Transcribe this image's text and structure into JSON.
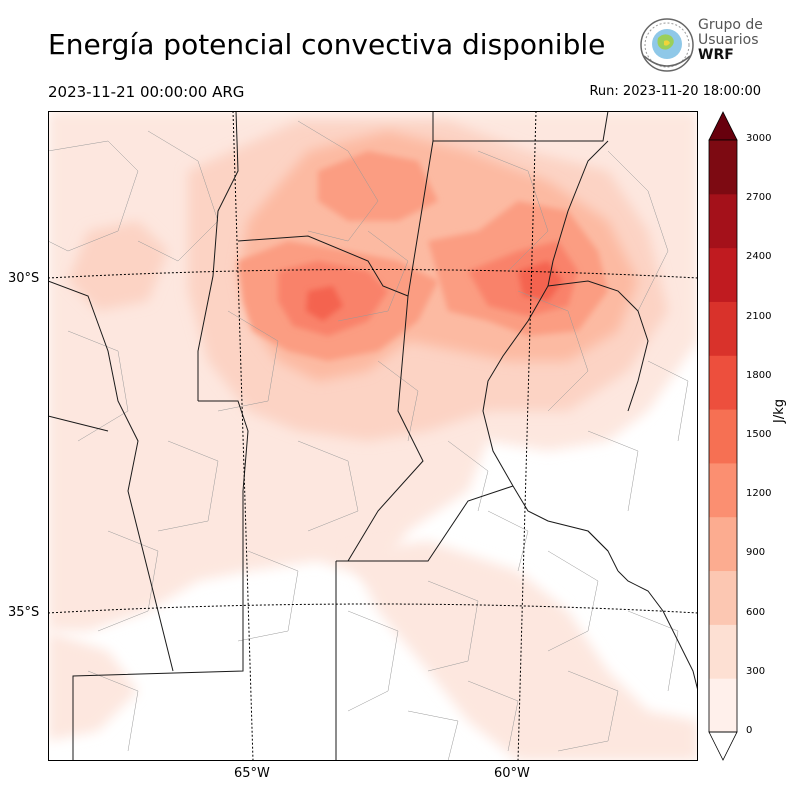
{
  "title": "Energía potencial convectiva disponible",
  "valid_time": "2023-11-21 00:00:00 ARG",
  "run_time": "Run: 2023-11-20 18:00:00",
  "logo": {
    "line1": "Grupo de",
    "line2": "Usuarios",
    "line3": "WRF"
  },
  "map": {
    "lat_labels": [
      "30°S",
      "35°S"
    ],
    "lon_labels": [
      "65°W",
      "60°W"
    ],
    "field_colors": [
      "#fde7df",
      "#fcd3c4",
      "#fcbaa2",
      "#fb9d82",
      "#f9826a",
      "#f4634f",
      "#e6382f",
      "#cc2028",
      "#ad141c",
      "#800c14"
    ]
  },
  "colorbar": {
    "label": "J/kg",
    "ticks": [
      "0",
      "300",
      "600",
      "900",
      "1200",
      "1500",
      "1800",
      "2100",
      "2400",
      "2700",
      "3000"
    ],
    "colors": [
      "#fff0eb",
      "#fde0d3",
      "#fcc7b2",
      "#fcac90",
      "#fb8f71",
      "#f67053",
      "#ed4f3d",
      "#d9322b",
      "#c01b20",
      "#a4111a",
      "#7d0a12"
    ],
    "under_color": "#ffffff",
    "over_color": "#67000d"
  }
}
